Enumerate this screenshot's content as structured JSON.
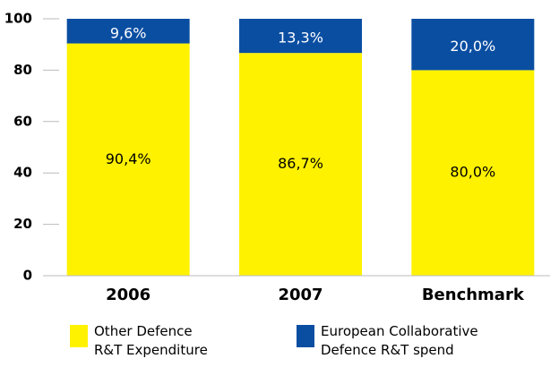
{
  "chart_data": {
    "type": "stacked_bar",
    "categories": [
      "2006",
      "2007",
      "Benchmark"
    ],
    "series": [
      {
        "name": "Other Defence R&T Expenditure",
        "color": "#fff200",
        "values": [
          90.4,
          86.7,
          80.0
        ],
        "value_labels": [
          "90,4%",
          "86,7%",
          "80,0%"
        ]
      },
      {
        "name": "European Collaborative Defence R&T spend",
        "color": "#0a4ea2",
        "values": [
          9.6,
          13.3,
          20.0
        ],
        "value_labels": [
          "9,6%",
          "13,3%",
          "20,0%"
        ]
      }
    ],
    "ylim": [
      0,
      100
    ],
    "yticks": [
      0,
      20,
      40,
      60,
      80,
      100
    ]
  }
}
